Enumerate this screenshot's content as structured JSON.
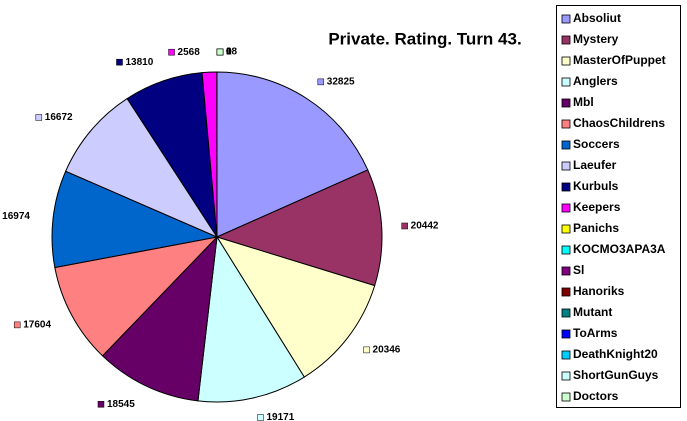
{
  "chart_data": {
    "type": "pie",
    "title": "Private. Rating. Turn 43.",
    "categories": [
      "Absoliut",
      "Mystery",
      "MasterOfPuppet",
      "Anglers",
      "Mbl",
      "ChaosChildrens",
      "Soccers",
      "Laeufer",
      "Kurbuls",
      "Keepers",
      "Panichs",
      "KOCMO3APA3A",
      "Sl",
      "Hanoriks",
      "Mutant",
      "ToArms",
      "DeathKnight20",
      "ShortGunGuys",
      "Doctors"
    ],
    "values": [
      32825,
      20442,
      20346,
      19171,
      18545,
      17604,
      16974,
      16672,
      13810,
      2568,
      18,
      0,
      0,
      0,
      0,
      0,
      0,
      0,
      0
    ],
    "colors": [
      "#9999ff",
      "#993366",
      "#ffffcc",
      "#ccffff",
      "#660066",
      "#ff8080",
      "#0066cc",
      "#ccccff",
      "#000080",
      "#ff00ff",
      "#ffff00",
      "#00ffff",
      "#800080",
      "#800000",
      "#008080",
      "#0000ff",
      "#00ccff",
      "#ccffff",
      "#ccffcc"
    ],
    "legend": "right"
  }
}
